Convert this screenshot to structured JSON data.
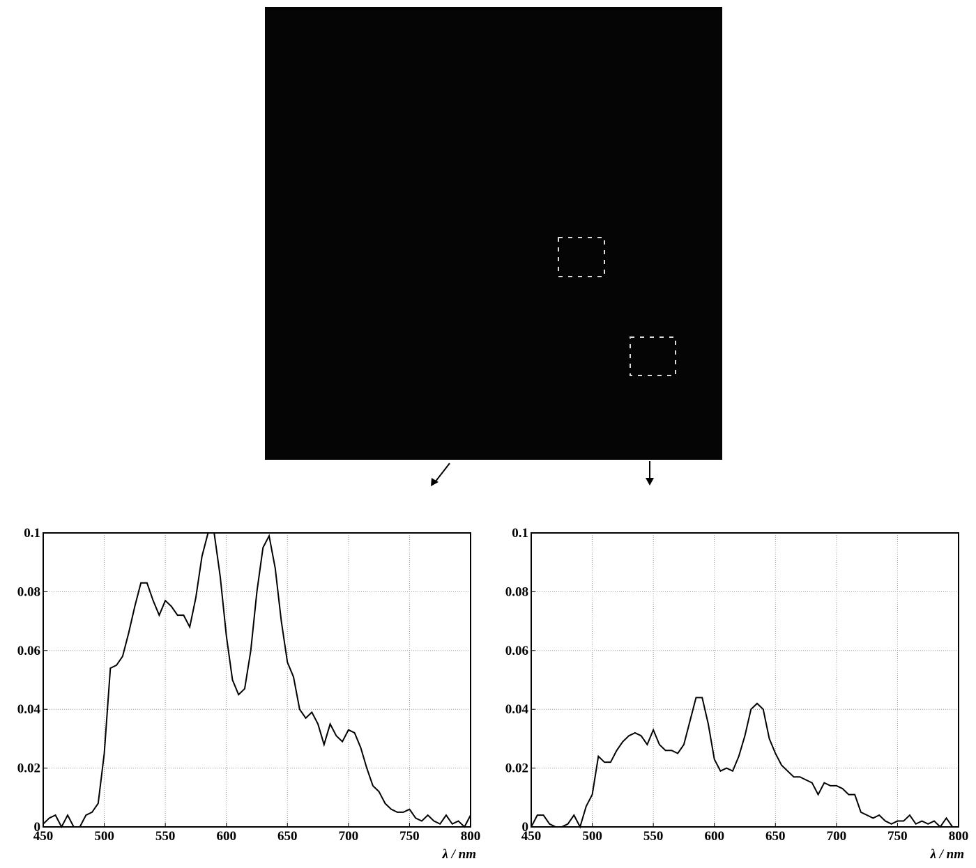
{
  "chart_data": [
    {
      "type": "line",
      "xlabel": "λ / nm",
      "color": "#000000",
      "grid": true,
      "x": [
        450,
        455,
        460,
        465,
        470,
        475,
        480,
        485,
        490,
        495,
        500,
        505,
        510,
        515,
        520,
        525,
        530,
        535,
        540,
        545,
        550,
        555,
        560,
        565,
        570,
        575,
        580,
        585,
        590,
        595,
        600,
        605,
        610,
        615,
        620,
        625,
        630,
        635,
        640,
        645,
        650,
        655,
        660,
        665,
        670,
        675,
        680,
        685,
        690,
        695,
        700,
        705,
        710,
        715,
        720,
        725,
        730,
        735,
        740,
        745,
        750,
        755,
        760,
        765,
        770,
        775,
        780,
        785,
        790,
        795,
        800
      ],
      "values": [
        0.001,
        0.003,
        0.004,
        0,
        0.004,
        0,
        0,
        0.004,
        0.005,
        0.008,
        0.025,
        0.054,
        0.055,
        0.058,
        0.066,
        0.075,
        0.083,
        0.083,
        0.077,
        0.072,
        0.077,
        0.075,
        0.072,
        0.072,
        0.068,
        0.078,
        0.092,
        0.1,
        0.1,
        0.085,
        0.065,
        0.05,
        0.045,
        0.047,
        0.06,
        0.08,
        0.095,
        0.099,
        0.088,
        0.07,
        0.056,
        0.051,
        0.04,
        0.037,
        0.039,
        0.035,
        0.028,
        0.035,
        0.031,
        0.029,
        0.033,
        0.032,
        0.027,
        0.02,
        0.014,
        0.012,
        0.008,
        0.006,
        0.005,
        0.005,
        0.006,
        0.003,
        0.002,
        0.004,
        0.002,
        0.001,
        0.004,
        0.001,
        0.002,
        0,
        0.004
      ],
      "xlim": [
        450,
        800
      ],
      "xticks": [
        450,
        500,
        550,
        600,
        650,
        700,
        750,
        800
      ],
      "ylim": [
        0,
        0.1
      ],
      "yticks": [
        0,
        0.02,
        0.04,
        0.06,
        0.08,
        0.1
      ]
    },
    {
      "type": "line",
      "xlabel": "λ / nm",
      "color": "#000000",
      "grid": true,
      "x": [
        450,
        455,
        460,
        465,
        470,
        475,
        480,
        485,
        490,
        495,
        500,
        505,
        510,
        515,
        520,
        525,
        530,
        535,
        540,
        545,
        550,
        555,
        560,
        565,
        570,
        575,
        580,
        585,
        590,
        595,
        600,
        605,
        610,
        615,
        620,
        625,
        630,
        635,
        640,
        645,
        650,
        655,
        660,
        665,
        670,
        675,
        680,
        685,
        690,
        695,
        700,
        705,
        710,
        715,
        720,
        725,
        730,
        735,
        740,
        745,
        750,
        755,
        760,
        765,
        770,
        775,
        780,
        785,
        790,
        795,
        800
      ],
      "values": [
        0,
        0.004,
        0.004,
        0.001,
        0,
        0,
        0.001,
        0.004,
        0,
        0.007,
        0.011,
        0.024,
        0.022,
        0.022,
        0.026,
        0.029,
        0.031,
        0.032,
        0.031,
        0.028,
        0.033,
        0.028,
        0.026,
        0.026,
        0.025,
        0.028,
        0.036,
        0.044,
        0.044,
        0.035,
        0.023,
        0.019,
        0.02,
        0.019,
        0.024,
        0.031,
        0.04,
        0.042,
        0.04,
        0.03,
        0.025,
        0.021,
        0.019,
        0.017,
        0.017,
        0.016,
        0.015,
        0.011,
        0.015,
        0.014,
        0.014,
        0.013,
        0.011,
        0.011,
        0.005,
        0.004,
        0.003,
        0.004,
        0.002,
        0.001,
        0.002,
        0.002,
        0.004,
        0.001,
        0.002,
        0.001,
        0.002,
        0,
        0.003,
        0,
        0
      ],
      "xlim": [
        450,
        800
      ],
      "xticks": [
        450,
        500,
        550,
        600,
        650,
        700,
        750,
        800
      ],
      "ylim": [
        0,
        0.1
      ],
      "yticks": [
        0,
        0.02,
        0.04,
        0.06,
        0.08,
        0.1
      ]
    }
  ]
}
